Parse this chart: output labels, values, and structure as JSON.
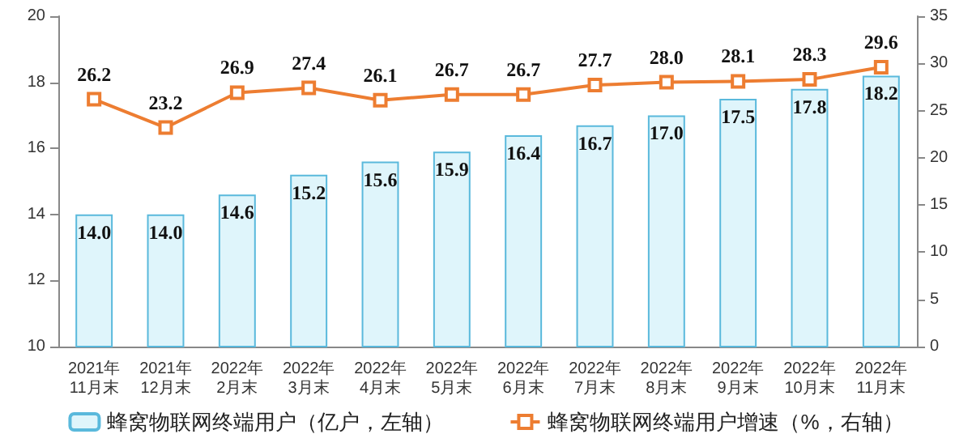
{
  "chart_data": {
    "type": "bar",
    "categories": [
      "2021年\n11月末",
      "2021年\n12月末",
      "2022年\n2月末",
      "2022年\n3月末",
      "2022年\n4月末",
      "2022年\n5月末",
      "2022年\n6月末",
      "2022年\n7月末",
      "2022年\n8月末",
      "2022年\n9月末",
      "2022年\n10月末",
      "2022年\n11月末"
    ],
    "series": [
      {
        "name": "蜂窝物联网终端用户（亿户，左轴）",
        "color": "#dff5fb",
        "values": [
          14.0,
          14.0,
          14.6,
          15.2,
          15.6,
          15.9,
          16.4,
          16.7,
          17.0,
          17.5,
          17.8,
          18.2
        ],
        "value_labels": [
          "14.0",
          "14.0",
          "14.6",
          "15.2",
          "15.6",
          "15.9",
          "16.4",
          "16.7",
          "17.0",
          "17.5",
          "17.8",
          "18.2"
        ]
      },
      {
        "name": "蜂窝物联网终端用户增速（%，右轴）",
        "type": "line",
        "axis": "y2",
        "color": "#ed7d31",
        "marker": "square",
        "values": [
          26.2,
          23.2,
          26.9,
          27.4,
          26.1,
          26.7,
          26.7,
          27.7,
          28.0,
          28.1,
          28.3,
          29.6
        ],
        "value_labels": [
          "26.2",
          "23.2",
          "26.9",
          "27.4",
          "26.1",
          "26.7",
          "26.7",
          "27.7",
          "28.0",
          "28.1",
          "28.3",
          "29.6"
        ]
      }
    ],
    "ylim": [
      10,
      20
    ],
    "yticks": [
      10,
      12,
      14,
      16,
      18,
      20
    ],
    "y2lim": [
      0,
      35
    ],
    "y2ticks": [
      0,
      5,
      10,
      15,
      20,
      25,
      30,
      35
    ],
    "legend": "bottom"
  }
}
